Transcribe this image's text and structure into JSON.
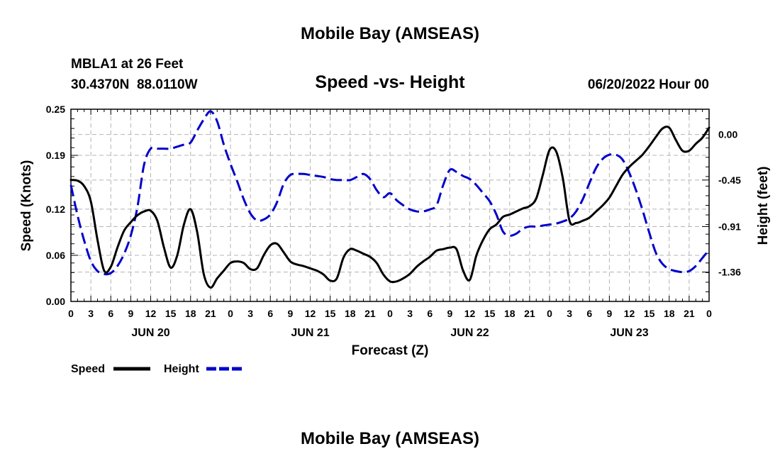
{
  "page": {
    "title": "Mobile Bay (AMSEAS)",
    "station_line": "MBLA1 at 26 Feet",
    "coords_line": "30.4370N  88.0110W",
    "subtitle": "Speed -vs- Height",
    "datetime": "06/20/2022 Hour 00",
    "footer_title": "Mobile Bay (AMSEAS)"
  },
  "chart_data": {
    "type": "line",
    "title": "Speed -vs- Height",
    "xlabel": "Forecast (Z)",
    "ylabel_left": "Speed (Knots)",
    "ylabel_right": "Height (feet)",
    "x_range_hours": [
      0,
      96
    ],
    "x_tick_step_hours": 3,
    "x_tick_labels": [
      "0",
      "3",
      "6",
      "9",
      "12",
      "15",
      "18",
      "21",
      "0",
      "3",
      "6",
      "9",
      "12",
      "15",
      "18",
      "21",
      "0",
      "3",
      "6",
      "9",
      "12",
      "15",
      "18",
      "21",
      "0",
      "3",
      "6",
      "9",
      "12",
      "15",
      "18",
      "21",
      "0"
    ],
    "day_labels": [
      {
        "label": "JUN 20",
        "hour": 12
      },
      {
        "label": "JUN 21",
        "hour": 36
      },
      {
        "label": "JUN 22",
        "hour": 60
      },
      {
        "label": "JUN 23",
        "hour": 84
      }
    ],
    "y_left": {
      "range": [
        0,
        0.25
      ],
      "ticks": [
        0.0,
        0.06,
        0.12,
        0.19,
        0.25
      ],
      "tick_labels": [
        "0.00",
        "0.06",
        "0.12",
        "0.19",
        "0.25"
      ]
    },
    "y_right": {
      "range": [
        -1.65,
        0.25
      ],
      "ticks": [
        0.0,
        -0.45,
        -0.91,
        -1.36
      ],
      "tick_labels": [
        "0.00",
        "-0.45",
        "-0.91",
        "-1.36"
      ]
    },
    "grid": true,
    "legend_position": "bottom-left",
    "series": [
      {
        "name": "Speed",
        "axis": "left",
        "color": "#000000",
        "style": "solid",
        "points": [
          [
            0,
            0.158
          ],
          [
            1,
            0.157
          ],
          [
            2,
            0.15
          ],
          [
            3,
            0.13
          ],
          [
            4,
            0.08
          ],
          [
            5,
            0.04
          ],
          [
            6,
            0.045
          ],
          [
            7,
            0.07
          ],
          [
            8,
            0.092
          ],
          [
            9,
            0.103
          ],
          [
            10,
            0.112
          ],
          [
            11,
            0.117
          ],
          [
            12,
            0.118
          ],
          [
            13,
            0.105
          ],
          [
            14,
            0.07
          ],
          [
            15,
            0.044
          ],
          [
            16,
            0.06
          ],
          [
            17,
            0.1
          ],
          [
            18,
            0.12
          ],
          [
            19,
            0.09
          ],
          [
            20,
            0.035
          ],
          [
            21,
            0.018
          ],
          [
            22,
            0.03
          ],
          [
            23,
            0.04
          ],
          [
            24,
            0.05
          ],
          [
            25,
            0.052
          ],
          [
            26,
            0.05
          ],
          [
            27,
            0.042
          ],
          [
            28,
            0.043
          ],
          [
            29,
            0.06
          ],
          [
            30,
            0.073
          ],
          [
            31,
            0.075
          ],
          [
            32,
            0.064
          ],
          [
            33,
            0.052
          ],
          [
            34,
            0.048
          ],
          [
            35,
            0.046
          ],
          [
            36,
            0.043
          ],
          [
            37,
            0.04
          ],
          [
            38,
            0.035
          ],
          [
            39,
            0.027
          ],
          [
            40,
            0.03
          ],
          [
            41,
            0.057
          ],
          [
            42,
            0.068
          ],
          [
            43,
            0.066
          ],
          [
            44,
            0.062
          ],
          [
            45,
            0.058
          ],
          [
            46,
            0.05
          ],
          [
            47,
            0.035
          ],
          [
            48,
            0.026
          ],
          [
            49,
            0.026
          ],
          [
            50,
            0.03
          ],
          [
            51,
            0.036
          ],
          [
            52,
            0.045
          ],
          [
            53,
            0.052
          ],
          [
            54,
            0.058
          ],
          [
            55,
            0.066
          ],
          [
            56,
            0.068
          ],
          [
            57,
            0.07
          ],
          [
            58,
            0.068
          ],
          [
            59,
            0.04
          ],
          [
            60,
            0.028
          ],
          [
            61,
            0.06
          ],
          [
            62,
            0.08
          ],
          [
            63,
            0.094
          ],
          [
            64,
            0.1
          ],
          [
            65,
            0.11
          ],
          [
            66,
            0.113
          ],
          [
            67,
            0.117
          ],
          [
            68,
            0.121
          ],
          [
            69,
            0.124
          ],
          [
            70,
            0.134
          ],
          [
            71,
            0.165
          ],
          [
            72,
            0.197
          ],
          [
            73,
            0.195
          ],
          [
            74,
            0.16
          ],
          [
            75,
            0.105
          ],
          [
            76,
            0.102
          ],
          [
            77,
            0.105
          ],
          [
            78,
            0.109
          ],
          [
            79,
            0.117
          ],
          [
            80,
            0.125
          ],
          [
            81,
            0.135
          ],
          [
            82,
            0.15
          ],
          [
            83,
            0.165
          ],
          [
            84,
            0.175
          ],
          [
            85,
            0.183
          ],
          [
            86,
            0.191
          ],
          [
            87,
            0.202
          ],
          [
            88,
            0.214
          ],
          [
            89,
            0.225
          ],
          [
            90,
            0.226
          ],
          [
            91,
            0.21
          ],
          [
            92,
            0.196
          ],
          [
            93,
            0.196
          ],
          [
            94,
            0.205
          ],
          [
            95,
            0.213
          ],
          [
            96,
            0.226
          ]
        ]
      },
      {
        "name": "Height",
        "axis": "right",
        "color": "#0000cc",
        "style": "dashed",
        "points": [
          [
            0,
            -0.5
          ],
          [
            1,
            -0.8
          ],
          [
            2,
            -1.05
          ],
          [
            3,
            -1.25
          ],
          [
            4,
            -1.35
          ],
          [
            5,
            -1.38
          ],
          [
            6,
            -1.37
          ],
          [
            7,
            -1.3
          ],
          [
            8,
            -1.18
          ],
          [
            9,
            -1.0
          ],
          [
            10,
            -0.72
          ],
          [
            11,
            -0.3
          ],
          [
            12,
            -0.14
          ],
          [
            13,
            -0.14
          ],
          [
            14,
            -0.14
          ],
          [
            15,
            -0.14
          ],
          [
            16,
            -0.12
          ],
          [
            17,
            -0.1
          ],
          [
            18,
            -0.08
          ],
          [
            19,
            0.04
          ],
          [
            20,
            0.15
          ],
          [
            21,
            0.23
          ],
          [
            22,
            0.13
          ],
          [
            23,
            -0.1
          ],
          [
            24,
            -0.29
          ],
          [
            25,
            -0.46
          ],
          [
            26,
            -0.64
          ],
          [
            27,
            -0.78
          ],
          [
            28,
            -0.85
          ],
          [
            29,
            -0.84
          ],
          [
            30,
            -0.79
          ],
          [
            31,
            -0.67
          ],
          [
            32,
            -0.49
          ],
          [
            33,
            -0.4
          ],
          [
            34,
            -0.39
          ],
          [
            35,
            -0.39
          ],
          [
            36,
            -0.4
          ],
          [
            37,
            -0.41
          ],
          [
            38,
            -0.42
          ],
          [
            39,
            -0.44
          ],
          [
            40,
            -0.45
          ],
          [
            41,
            -0.45
          ],
          [
            42,
            -0.45
          ],
          [
            43,
            -0.42
          ],
          [
            44,
            -0.39
          ],
          [
            45,
            -0.44
          ],
          [
            46,
            -0.55
          ],
          [
            47,
            -0.62
          ],
          [
            48,
            -0.58
          ],
          [
            49,
            -0.65
          ],
          [
            50,
            -0.7
          ],
          [
            51,
            -0.74
          ],
          [
            52,
            -0.76
          ],
          [
            53,
            -0.76
          ],
          [
            54,
            -0.74
          ],
          [
            55,
            -0.7
          ],
          [
            56,
            -0.5
          ],
          [
            57,
            -0.35
          ],
          [
            58,
            -0.37
          ],
          [
            59,
            -0.41
          ],
          [
            60,
            -0.44
          ],
          [
            61,
            -0.5
          ],
          [
            62,
            -0.58
          ],
          [
            63,
            -0.66
          ],
          [
            64,
            -0.79
          ],
          [
            65,
            -0.96
          ],
          [
            66,
            -1.0
          ],
          [
            67,
            -0.98
          ],
          [
            68,
            -0.93
          ],
          [
            69,
            -0.91
          ],
          [
            70,
            -0.91
          ],
          [
            71,
            -0.9
          ],
          [
            72,
            -0.89
          ],
          [
            73,
            -0.88
          ],
          [
            74,
            -0.86
          ],
          [
            75,
            -0.83
          ],
          [
            76,
            -0.76
          ],
          [
            77,
            -0.64
          ],
          [
            78,
            -0.48
          ],
          [
            79,
            -0.33
          ],
          [
            80,
            -0.24
          ],
          [
            81,
            -0.2
          ],
          [
            82,
            -0.2
          ],
          [
            83,
            -0.25
          ],
          [
            84,
            -0.38
          ],
          [
            85,
            -0.55
          ],
          [
            86,
            -0.75
          ],
          [
            87,
            -0.97
          ],
          [
            88,
            -1.17
          ],
          [
            89,
            -1.28
          ],
          [
            90,
            -1.33
          ],
          [
            91,
            -1.35
          ],
          [
            92,
            -1.36
          ],
          [
            93,
            -1.35
          ],
          [
            94,
            -1.3
          ],
          [
            95,
            -1.22
          ],
          [
            96,
            -1.14
          ]
        ]
      }
    ]
  }
}
